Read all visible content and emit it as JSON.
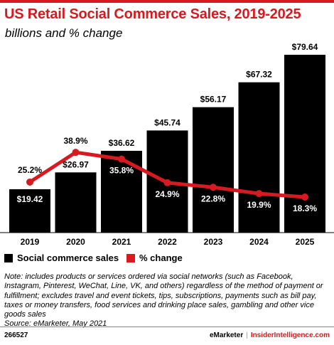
{
  "header": {
    "title": "US Retail Social Commerce Sales, 2019-2025",
    "subtitle": "billions and % change"
  },
  "colors": {
    "brand_red": "#d71920",
    "bar": "#000000"
  },
  "legend": {
    "bars_label": "Social commerce sales",
    "line_label": "% change"
  },
  "chart_data": {
    "type": "bar",
    "title": "US Retail Social Commerce Sales, 2019-2025",
    "subtitle": "billions and % change",
    "categories": [
      "2019",
      "2020",
      "2021",
      "2022",
      "2023",
      "2024",
      "2025"
    ],
    "series": [
      {
        "name": "Social commerce sales",
        "type": "bar",
        "values": [
          19.42,
          26.97,
          36.62,
          45.74,
          56.17,
          67.32,
          79.64
        ],
        "labels": [
          "$19.42",
          "$26.97",
          "$36.62",
          "$45.74",
          "$56.17",
          "$67.32",
          "$79.64"
        ]
      },
      {
        "name": "% change",
        "type": "line",
        "values": [
          25.2,
          38.9,
          35.8,
          24.9,
          22.8,
          19.9,
          18.3
        ],
        "labels": [
          "25.2%",
          "38.9%",
          "35.8%",
          "24.9%",
          "22.8%",
          "19.9%",
          "18.3%"
        ]
      }
    ],
    "legend_position": "bottom-left",
    "grid": false
  },
  "note": {
    "text": "Note: includes products or services ordered via social networks (such as Facebook, Instagram, Pinterest, WeChat, Line, VK, and others) regardless of the method of payment or fulfillment; excludes travel and event tickets, tips, subscriptions, payments such as bill pay, taxes or money transfers, food services and drinking place sales, gambling and other vice goods sales",
    "source": "Source: eMarketer, May 2021"
  },
  "footer": {
    "id": "266527",
    "brand": "eMarketer",
    "separator": "|",
    "brand2": "InsiderIntelligence.com"
  }
}
